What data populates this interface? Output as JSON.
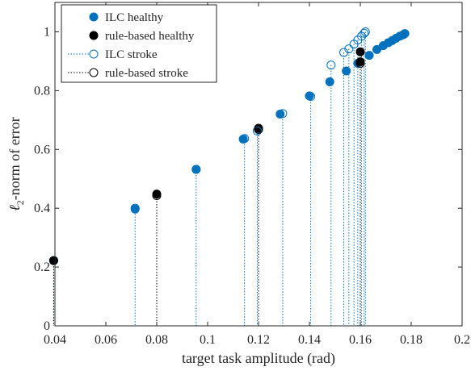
{
  "chart_data": {
    "type": "scatter",
    "xlabel": "target task amplitude (rad)",
    "ylabel_main": "-norm of error",
    "ylabel_symbol": "ℓ",
    "ylabel_subscript": "2",
    "xlim": [
      0.04,
      0.2
    ],
    "ylim": [
      0,
      1.1
    ],
    "xticks": [
      0.04,
      0.06,
      0.08,
      0.1,
      0.12,
      0.14,
      0.16,
      0.18,
      0.2
    ],
    "xtick_labels": [
      "0.04",
      "0.06",
      "0.08",
      "0.1",
      "0.12",
      "0.14",
      "0.16",
      "0.18",
      "0.2"
    ],
    "yticks": [
      0,
      0.2,
      0.4,
      0.6,
      0.8,
      1
    ],
    "ytick_labels": [
      "0",
      "0.2",
      "0.4",
      "0.6",
      "0.8",
      "1"
    ],
    "grid": false,
    "legend_position": "top-left",
    "colors": {
      "ilc": "#0072BD",
      "rule": "#000000",
      "axis": "#262626"
    },
    "series": [
      {
        "name": "ILC healthy",
        "marker": "filled-circle",
        "color": "#0072BD",
        "stems": false,
        "points": [
          [
            0.0715,
            0.397
          ],
          [
            0.0955,
            0.532
          ],
          [
            0.114,
            0.635
          ],
          [
            0.12,
            0.668
          ],
          [
            0.1285,
            0.72
          ],
          [
            0.14,
            0.782
          ],
          [
            0.148,
            0.83
          ],
          [
            0.1545,
            0.867
          ],
          [
            0.159,
            0.893
          ],
          [
            0.1635,
            0.92
          ],
          [
            0.1665,
            0.94
          ],
          [
            0.169,
            0.953
          ],
          [
            0.171,
            0.963
          ],
          [
            0.1725,
            0.97
          ],
          [
            0.174,
            0.978
          ],
          [
            0.1755,
            0.985
          ],
          [
            0.1768,
            0.99
          ],
          [
            0.1775,
            0.994
          ]
        ]
      },
      {
        "name": "rule-based healthy",
        "marker": "filled-circle",
        "color": "#000000",
        "stems": false,
        "points": [
          [
            0.0395,
            0.222
          ],
          [
            0.08,
            0.448
          ],
          [
            0.12,
            0.672
          ],
          [
            0.16,
            0.932
          ],
          [
            0.16,
            0.898
          ]
        ]
      },
      {
        "name": "ILC stroke",
        "marker": "open-circle",
        "color": "#0072BD",
        "stems": true,
        "points": [
          [
            0.0395,
            0.222
          ],
          [
            0.0715,
            0.4
          ],
          [
            0.0955,
            0.532
          ],
          [
            0.1145,
            0.637
          ],
          [
            0.1195,
            0.663
          ],
          [
            0.1295,
            0.722
          ],
          [
            0.1405,
            0.78
          ],
          [
            0.1485,
            0.887
          ],
          [
            0.1535,
            0.93
          ],
          [
            0.1555,
            0.942
          ],
          [
            0.1575,
            0.958
          ],
          [
            0.159,
            0.972
          ],
          [
            0.1605,
            0.985
          ],
          [
            0.1615,
            0.995
          ],
          [
            0.162,
            1.0
          ]
        ]
      },
      {
        "name": "rule-based stroke",
        "marker": "open-circle",
        "color": "#000000",
        "stems": true,
        "points": [
          [
            0.0395,
            0.222
          ],
          [
            0.08,
            0.443
          ],
          [
            0.12,
            0.668
          ],
          [
            0.16,
            0.893
          ]
        ]
      }
    ]
  }
}
